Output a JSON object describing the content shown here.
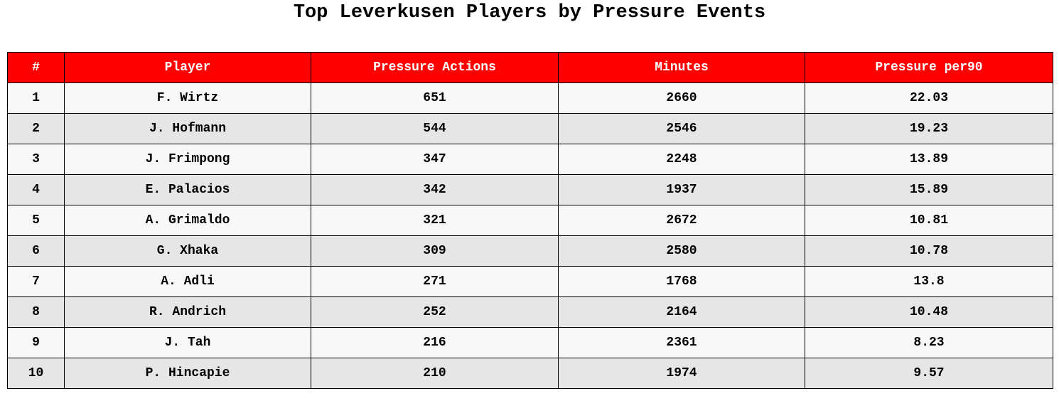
{
  "chart_data": {
    "type": "table",
    "title": "Top Leverkusen Players by Pressure Events",
    "columns": [
      "#",
      "Player",
      "Pressure Actions",
      "Minutes",
      "Pressure per90"
    ],
    "rows": [
      [
        "1",
        "F. Wirtz",
        "651",
        "2660",
        "22.03"
      ],
      [
        "2",
        "J. Hofmann",
        "544",
        "2546",
        "19.23"
      ],
      [
        "3",
        "J. Frimpong",
        "347",
        "2248",
        "13.89"
      ],
      [
        "4",
        "E. Palacios",
        "342",
        "1937",
        "15.89"
      ],
      [
        "5",
        "A. Grimaldo",
        "321",
        "2672",
        "10.81"
      ],
      [
        "6",
        "G. Xhaka",
        "309",
        "2580",
        "10.78"
      ],
      [
        "7",
        "A. Adli",
        "271",
        "1768",
        "13.8"
      ],
      [
        "8",
        "R. Andrich",
        "252",
        "2164",
        "10.48"
      ],
      [
        "9",
        "J. Tah",
        "216",
        "2361",
        "8.23"
      ],
      [
        "10",
        "P. Hincapie",
        "210",
        "1974",
        "9.57"
      ]
    ],
    "header_color": "#ff0000",
    "header_text_color": "#ffffff",
    "row_colors": [
      "#f8f8f8",
      "#e6e6e6"
    ]
  }
}
